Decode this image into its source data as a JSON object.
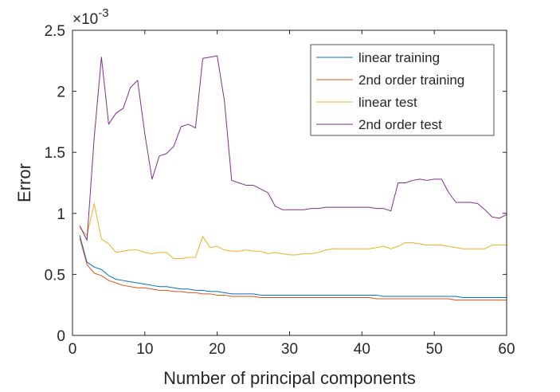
{
  "chart_data": {
    "type": "line",
    "xlabel": "Number of principal components",
    "ylabel": "Error",
    "y_exponent_prefix": "×10",
    "y_exponent_power": "-3",
    "xlim": [
      0,
      60
    ],
    "ylim": [
      0,
      2.5
    ],
    "x_ticks": [
      0,
      10,
      20,
      30,
      40,
      50,
      60
    ],
    "y_ticks": [
      0,
      0.5,
      1,
      1.5,
      2,
      2.5
    ],
    "x_tick_labels": [
      "0",
      "10",
      "20",
      "30",
      "40",
      "50",
      "60"
    ],
    "y_tick_labels": [
      "0",
      "0.5",
      "1",
      "1.5",
      "2",
      "2.5"
    ],
    "legend_position": "top-right",
    "grid": false,
    "x": [
      1,
      2,
      3,
      4,
      5,
      6,
      7,
      8,
      9,
      10,
      11,
      12,
      13,
      14,
      15,
      16,
      17,
      18,
      19,
      20,
      21,
      22,
      23,
      24,
      25,
      26,
      27,
      28,
      29,
      30,
      31,
      32,
      33,
      34,
      35,
      36,
      37,
      38,
      39,
      40,
      41,
      42,
      43,
      44,
      45,
      46,
      47,
      48,
      49,
      50,
      51,
      52,
      53,
      54,
      55,
      56,
      57,
      58,
      59,
      60
    ],
    "series": [
      {
        "name": "linear training",
        "color": "#0072BD",
        "values": [
          0.82,
          0.6,
          0.56,
          0.54,
          0.49,
          0.46,
          0.45,
          0.44,
          0.43,
          0.42,
          0.41,
          0.4,
          0.4,
          0.39,
          0.38,
          0.38,
          0.37,
          0.37,
          0.36,
          0.36,
          0.35,
          0.34,
          0.34,
          0.34,
          0.34,
          0.33,
          0.33,
          0.33,
          0.33,
          0.33,
          0.33,
          0.33,
          0.33,
          0.33,
          0.33,
          0.33,
          0.33,
          0.33,
          0.33,
          0.33,
          0.33,
          0.33,
          0.32,
          0.32,
          0.32,
          0.32,
          0.32,
          0.32,
          0.32,
          0.32,
          0.32,
          0.32,
          0.32,
          0.31,
          0.31,
          0.31,
          0.31,
          0.31,
          0.31,
          0.31
        ]
      },
      {
        "name": "2nd order training",
        "color": "#D95319",
        "values": [
          0.8,
          0.58,
          0.51,
          0.49,
          0.45,
          0.43,
          0.41,
          0.4,
          0.39,
          0.39,
          0.38,
          0.37,
          0.37,
          0.36,
          0.36,
          0.35,
          0.35,
          0.34,
          0.34,
          0.33,
          0.33,
          0.32,
          0.32,
          0.32,
          0.32,
          0.31,
          0.31,
          0.31,
          0.31,
          0.31,
          0.31,
          0.31,
          0.31,
          0.31,
          0.31,
          0.31,
          0.31,
          0.31,
          0.31,
          0.31,
          0.31,
          0.3,
          0.3,
          0.3,
          0.3,
          0.3,
          0.3,
          0.3,
          0.3,
          0.3,
          0.3,
          0.3,
          0.29,
          0.29,
          0.29,
          0.29,
          0.29,
          0.29,
          0.29,
          0.29
        ]
      },
      {
        "name": "linear test",
        "color": "#EDB120",
        "values": [
          0.88,
          0.82,
          1.08,
          0.79,
          0.75,
          0.68,
          0.69,
          0.7,
          0.7,
          0.68,
          0.67,
          0.68,
          0.68,
          0.63,
          0.63,
          0.64,
          0.64,
          0.81,
          0.72,
          0.73,
          0.7,
          0.69,
          0.69,
          0.7,
          0.69,
          0.69,
          0.67,
          0.68,
          0.67,
          0.66,
          0.66,
          0.67,
          0.67,
          0.68,
          0.7,
          0.71,
          0.71,
          0.71,
          0.71,
          0.71,
          0.71,
          0.72,
          0.73,
          0.71,
          0.73,
          0.76,
          0.76,
          0.75,
          0.74,
          0.74,
          0.74,
          0.73,
          0.72,
          0.71,
          0.71,
          0.71,
          0.71,
          0.74,
          0.74,
          0.74
        ]
      },
      {
        "name": "2nd order test",
        "color": "#7E2F8E",
        "values": [
          0.9,
          0.78,
          1.62,
          2.28,
          1.73,
          1.82,
          1.86,
          2.03,
          2.09,
          1.65,
          1.28,
          1.47,
          1.49,
          1.55,
          1.71,
          1.73,
          1.7,
          2.27,
          2.28,
          2.29,
          1.92,
          1.27,
          1.25,
          1.23,
          1.23,
          1.2,
          1.17,
          1.06,
          1.03,
          1.03,
          1.03,
          1.03,
          1.04,
          1.04,
          1.05,
          1.05,
          1.05,
          1.05,
          1.05,
          1.05,
          1.05,
          1.04,
          1.04,
          1.02,
          1.25,
          1.25,
          1.27,
          1.28,
          1.27,
          1.28,
          1.28,
          1.17,
          1.09,
          1.09,
          1.09,
          1.08,
          1.03,
          0.97,
          0.96,
          0.99
        ]
      }
    ]
  }
}
